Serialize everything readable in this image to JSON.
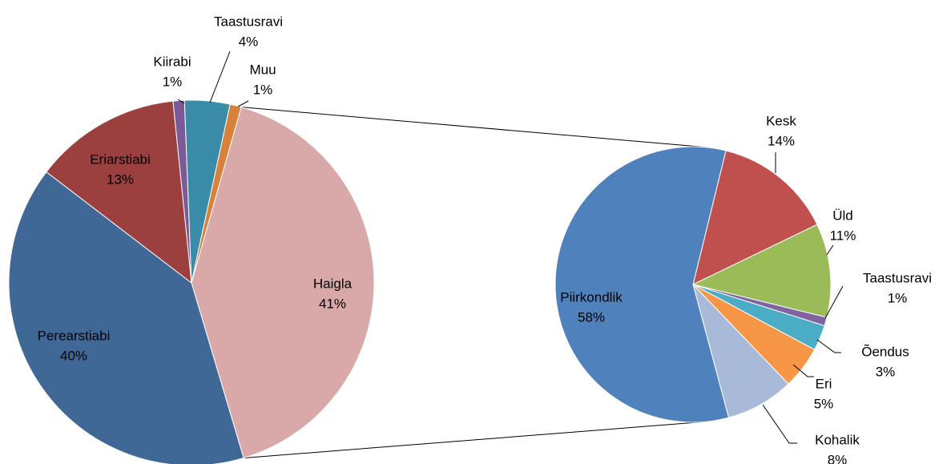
{
  "chart_data": [
    {
      "type": "pie",
      "categories": [
        "Haigla",
        "Perearstiabi",
        "Eriarstiabi",
        "Kiirabi",
        "Taastusravi",
        "Muu"
      ],
      "values": [
        41,
        40,
        13,
        1,
        4,
        1
      ],
      "value_labels": [
        "41%",
        "40%",
        "13%",
        "1%",
        "4%",
        "1%"
      ],
      "colors": [
        "#d9a9a9",
        "#3f6896",
        "#9b3f3f",
        "#7c5a97",
        "#3a8ba8",
        "#d7813a"
      ]
    },
    {
      "type": "pie",
      "categories": [
        "Kesk",
        "Üld",
        "Taastusravi",
        "Õendus",
        "Eri",
        "Kohalik",
        "Piirkondlik"
      ],
      "values": [
        14,
        11,
        1,
        3,
        5,
        8,
        58
      ],
      "value_labels": [
        "14%",
        "11%",
        "1%",
        "3%",
        "5%",
        "8%",
        "58%"
      ],
      "colors": [
        "#c0504d",
        "#9bbb59",
        "#8064a2",
        "#4bacc6",
        "#f79646",
        "#a9b9d8",
        "#4f81bd"
      ]
    }
  ]
}
